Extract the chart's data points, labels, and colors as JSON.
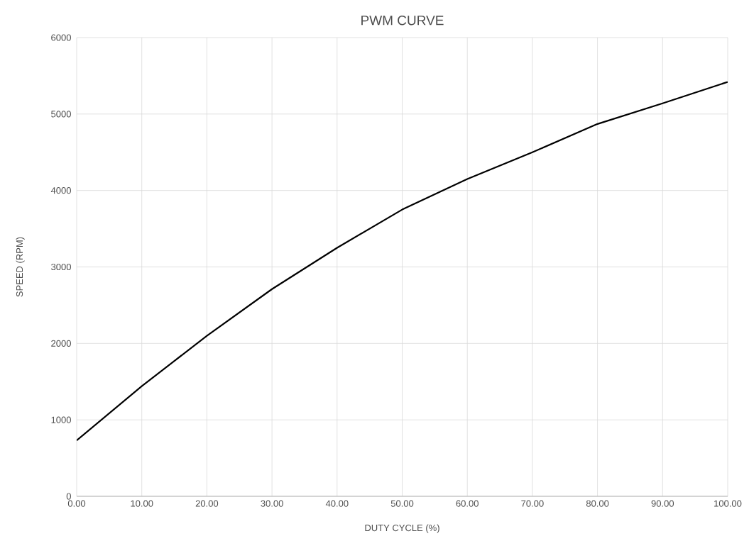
{
  "chart_data": {
    "type": "line",
    "title": "PWM CURVE",
    "xlabel": "DUTY CYCLE (%)",
    "ylabel": "SPEED (RPM)",
    "x": [
      0,
      10,
      20,
      30,
      40,
      50,
      60,
      70,
      80,
      90,
      100
    ],
    "series": [
      {
        "color": "#000000",
        "values": [
          730,
          1440,
          2100,
          2710,
          3250,
          3750,
          4150,
          4500,
          4870,
          5140,
          5420
        ]
      }
    ],
    "xlim": [
      0,
      100
    ],
    "ylim": [
      0,
      6000
    ],
    "xticks": [
      {
        "value": 0,
        "label": "0.00"
      },
      {
        "value": 10,
        "label": "10.00"
      },
      {
        "value": 20,
        "label": "20.00"
      },
      {
        "value": 30,
        "label": "30.00"
      },
      {
        "value": 40,
        "label": "40.00"
      },
      {
        "value": 50,
        "label": "50.00"
      },
      {
        "value": 60,
        "label": "60.00"
      },
      {
        "value": 70,
        "label": "70.00"
      },
      {
        "value": 80,
        "label": "80.00"
      },
      {
        "value": 90,
        "label": "90.00"
      },
      {
        "value": 100,
        "label": "100.00"
      }
    ],
    "yticks": [
      0,
      1000,
      2000,
      3000,
      4000,
      5000,
      6000
    ],
    "grid": true,
    "marker": "none",
    "line_style": "solid"
  }
}
